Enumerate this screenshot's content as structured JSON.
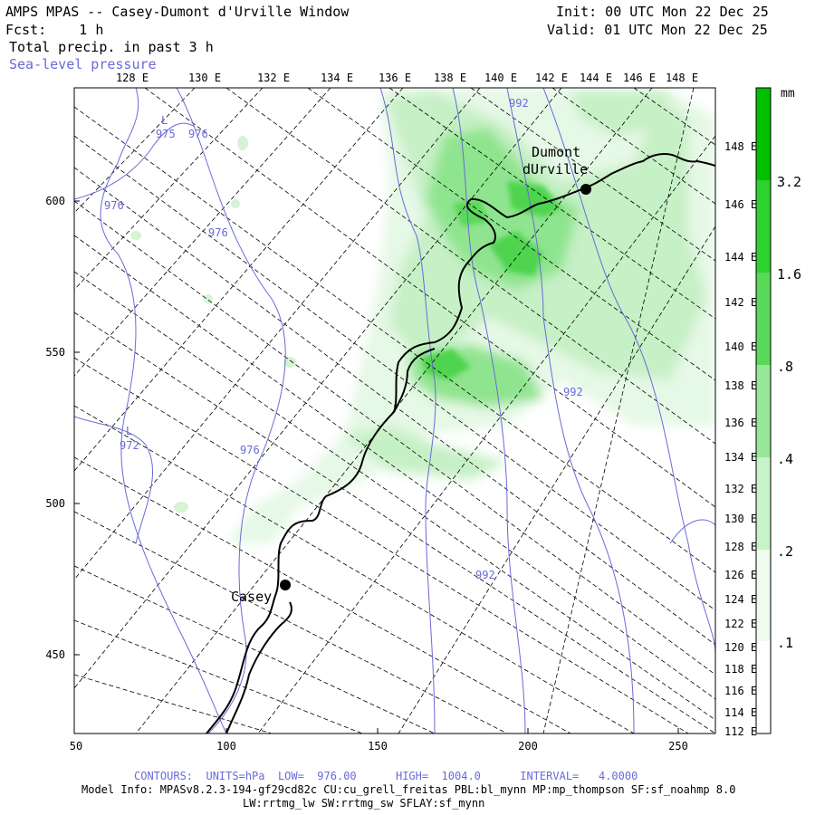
{
  "header": {
    "title": "AMPS MPAS -- Casey-Dumont d'Urville Window",
    "forecast": "Fcst:    1 h",
    "init": "Init: 00 UTC Mon 22 Dec 25",
    "valid": "Valid: 01 UTC Mon 22 Dec 25",
    "field": "Total precip. in past 3 h",
    "overlay": "Sea-level pressure"
  },
  "axes": {
    "top_lon": [
      "128 E",
      "130 E",
      "132 E",
      "134 E",
      "136 E",
      "138 E",
      "140 E",
      "142 E",
      "144 E",
      "146 E",
      "148 E"
    ],
    "right_lon": [
      "148 E",
      "146 E",
      "144 E",
      "142 E",
      "140 E",
      "138 E",
      "136 E",
      "134 E",
      "132 E",
      "130 E",
      "128 E",
      "126 E",
      "124 E",
      "122 E",
      "120 E",
      "118 E",
      "116 E",
      "114 E",
      "112 E"
    ],
    "left_y": [
      "600",
      "550",
      "500",
      "450"
    ],
    "bottom_x": [
      "50",
      "100",
      "150",
      "200",
      "250"
    ]
  },
  "colorbar": {
    "unit": "mm",
    "levels": [
      ".1",
      ".2",
      ".4",
      ".8",
      "1.6",
      "3.2"
    ],
    "colors": [
      "#ffffff",
      "#eefbee",
      "#c2f0c2",
      "#8fe48f",
      "#55d655",
      "#1fcc1f",
      "#00c000"
    ]
  },
  "map": {
    "stations": [
      {
        "name": "Casey",
        "icon": "station-dot-icon"
      },
      {
        "name_line1": "Dumont",
        "name_line2": "dUrville",
        "icon": "station-dot-icon"
      }
    ],
    "pressure_labels": [
      "975",
      "976",
      "976",
      "976",
      "972",
      "976",
      "992",
      "992",
      "992"
    ],
    "low_markers": [
      "L",
      "L"
    ],
    "coast_color": "#000000",
    "contour_color": "#6a6ad8"
  },
  "footer": {
    "contours": "CONTOURS:  UNITS=hPa  LOW=  976.00      HIGH=  1004.0      INTERVAL=   4.0000",
    "model_info": "Model Info: MPASv8.2.3-194-gf29cd82c CU:cu_grell_freitas PBL:bl_mynn MP:mp_thompson SF:sf_noahmp 8.0",
    "model_info2": "LW:rrtmg_lw SW:rrtmg_sw SFLAY:sf_mynn"
  }
}
